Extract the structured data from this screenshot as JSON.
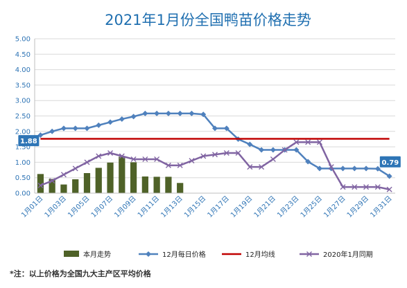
{
  "chart_data": {
    "type": "bar+line",
    "title": "2021年1月份全国鸭苗价格走势",
    "categories": [
      "1月01日",
      "1月02日",
      "1月03日",
      "1月04日",
      "1月05日",
      "1月06日",
      "1月07日",
      "1月08日",
      "1月09日",
      "1月10日",
      "1月11日",
      "1月12日",
      "1月13日",
      "1月14日",
      "1月15日",
      "1月16日",
      "1月17日",
      "1月18日",
      "1月19日",
      "1月20日",
      "1月21日",
      "1月22日",
      "1月23日",
      "1月24日",
      "1月25日",
      "1月26日",
      "1月27日",
      "1月28日",
      "1月29日",
      "1月30日",
      "1月31日"
    ],
    "tick_labels": [
      "1月01日",
      "1月03日",
      "1月05日",
      "1月07日",
      "1月09日",
      "1月11日",
      "1月13日",
      "1月15日",
      "1月17日",
      "1月19日",
      "1月21日",
      "1月23日",
      "1月25日",
      "1月27日",
      "1月29日",
      "1月31日"
    ],
    "ylim": [
      0,
      5
    ],
    "yticks": [
      "0.00",
      "0.50",
      "1.00",
      "1.50",
      "2.00",
      "2.50",
      "3.00",
      "3.50",
      "4.00",
      "4.50",
      "5.00"
    ],
    "grid": true,
    "legend_position": "bottom",
    "series": [
      {
        "name": "本月走势",
        "kind": "bar",
        "color": "#4f6228",
        "values": [
          0.62,
          0.46,
          0.28,
          0.45,
          0.65,
          0.82,
          0.99,
          1.18,
          1.0,
          0.54,
          0.53,
          0.53,
          0.33,
          null,
          null,
          null,
          null,
          null,
          null,
          null,
          null,
          null,
          null,
          null,
          null,
          null,
          null,
          null,
          null,
          null,
          null
        ]
      },
      {
        "name": "12月每日价格",
        "kind": "line",
        "marker": "diamond",
        "color": "#4f81bd",
        "values": [
          1.88,
          2.0,
          2.1,
          2.1,
          2.1,
          2.2,
          2.3,
          2.4,
          2.48,
          2.58,
          2.58,
          2.58,
          2.58,
          2.58,
          2.55,
          2.1,
          2.1,
          1.75,
          1.58,
          1.4,
          1.4,
          1.4,
          1.4,
          1.02,
          0.8,
          0.8,
          0.8,
          0.8,
          0.8,
          0.79,
          0.55
        ]
      },
      {
        "name": "12月均线",
        "kind": "line",
        "marker": "none",
        "color": "#c00000",
        "values": [
          1.76,
          1.76,
          1.76,
          1.76,
          1.76,
          1.76,
          1.76,
          1.76,
          1.76,
          1.76,
          1.76,
          1.76,
          1.76,
          1.76,
          1.76,
          1.76,
          1.76,
          1.76,
          1.76,
          1.76,
          1.76,
          1.76,
          1.76,
          1.76,
          1.76,
          1.76,
          1.76,
          1.76,
          1.76,
          1.76,
          1.76
        ]
      },
      {
        "name": "2020年1月同期",
        "kind": "line",
        "marker": "x",
        "color": "#8064a2",
        "values": [
          0.25,
          0.4,
          0.6,
          0.8,
          1.0,
          1.2,
          1.3,
          1.2,
          1.1,
          1.1,
          1.1,
          0.9,
          0.9,
          1.05,
          1.2,
          1.25,
          1.3,
          1.3,
          0.85,
          0.85,
          1.1,
          1.4,
          1.65,
          1.65,
          1.65,
          0.85,
          0.2,
          0.2,
          0.2,
          0.2,
          0.12
        ]
      }
    ],
    "data_labels": [
      {
        "series": "12月每日价格",
        "point": "1月01日",
        "text": "1.88"
      },
      {
        "series": "12月每日价格",
        "point": "1月30日",
        "text": "0.79"
      }
    ],
    "note": "*注：以上价格为全国九大主产区平均价格"
  }
}
